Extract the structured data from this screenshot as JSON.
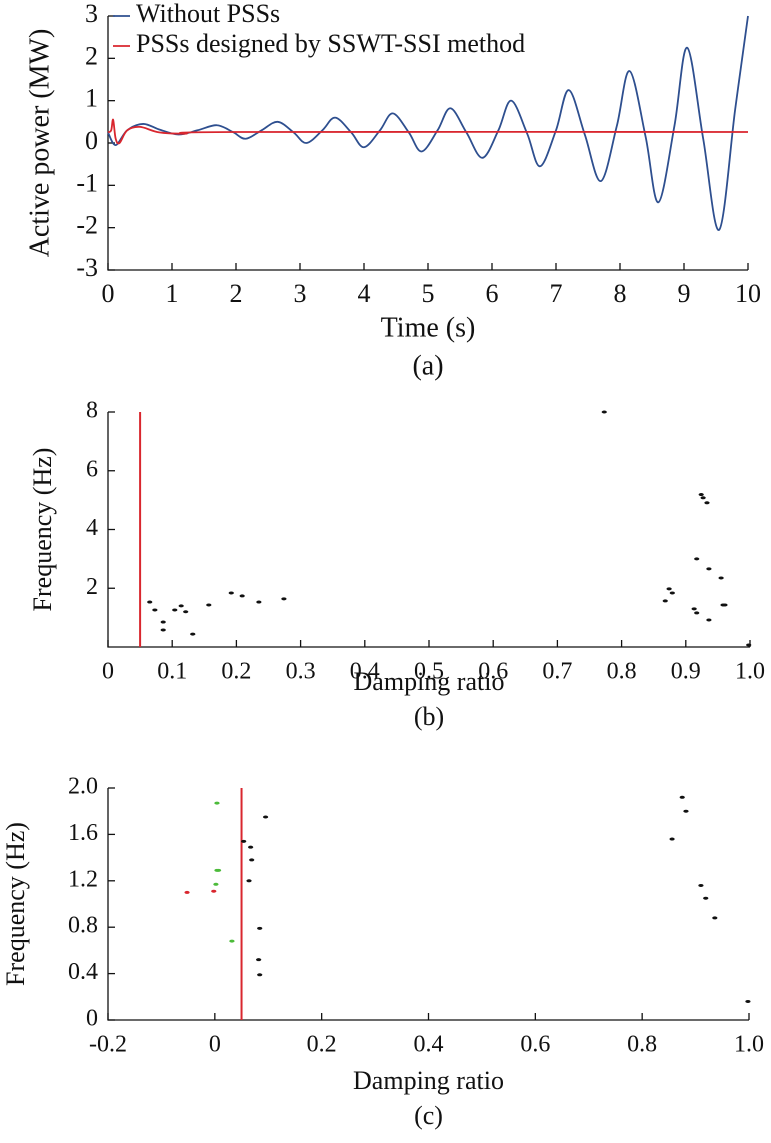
{
  "chart_data": [
    {
      "type": "line",
      "caption": "(a)",
      "x_label": "Time (s)",
      "y_label": "Active power (MW)",
      "xlim": [
        0,
        10
      ],
      "ylim": [
        -3,
        3
      ],
      "xticks": [
        0,
        1,
        2,
        3,
        4,
        5,
        6,
        7,
        8,
        9,
        10
      ],
      "yticks": [
        -3,
        -2,
        -1,
        0,
        1,
        2,
        3
      ],
      "legend": "upper left",
      "series": [
        {
          "name": "Without PSSs",
          "color": "#2e4f8f",
          "x": [
            0,
            0.12,
            0.3,
            0.55,
            0.8,
            1.1,
            1.4,
            1.7,
            1.95,
            2.15,
            2.4,
            2.65,
            2.9,
            3.1,
            3.35,
            3.55,
            3.8,
            4.0,
            4.25,
            4.45,
            4.7,
            4.9,
            5.15,
            5.35,
            5.6,
            5.85,
            6.1,
            6.3,
            6.55,
            6.75,
            7.0,
            7.2,
            7.45,
            7.7,
            7.95,
            8.15,
            8.4,
            8.6,
            8.85,
            9.05,
            9.3,
            9.55,
            9.8,
            10.0
          ],
          "values": [
            0.25,
            -0.05,
            0.3,
            0.45,
            0.32,
            0.2,
            0.3,
            0.42,
            0.26,
            0.1,
            0.3,
            0.5,
            0.25,
            0.0,
            0.3,
            0.6,
            0.25,
            -0.1,
            0.3,
            0.7,
            0.25,
            -0.2,
            0.3,
            0.82,
            0.25,
            -0.35,
            0.3,
            1.0,
            0.22,
            -0.55,
            0.3,
            1.25,
            0.2,
            -0.9,
            0.4,
            1.7,
            0.15,
            -1.4,
            0.4,
            2.25,
            0.1,
            -2.05,
            0.8,
            3.0
          ]
        },
        {
          "name": "PSSs designed by SSWT-SSI method",
          "color": "#d9262e",
          "x": [
            0,
            0.05,
            0.08,
            0.12,
            0.18,
            0.3,
            0.5,
            0.8,
            1.2,
            2.0,
            10.0
          ],
          "values": [
            0.25,
            0.3,
            0.55,
            0.1,
            0.0,
            0.3,
            0.38,
            0.25,
            0.22,
            0.26,
            0.26
          ]
        }
      ]
    },
    {
      "type": "scatter",
      "caption": "(b)",
      "x_label": "Damping ratio",
      "y_label": "Frequency (Hz)",
      "xlim": [
        0,
        1
      ],
      "ylim": [
        0,
        8
      ],
      "xticks": [
        0,
        0.1,
        0.2,
        0.3,
        0.4,
        0.5,
        0.6,
        0.7,
        0.8,
        0.9,
        {
          "value": 1,
          "label": "1.0"
        }
      ],
      "yticks": [
        2,
        4,
        6,
        8
      ],
      "threshold_line": {
        "x": 0.05,
        "color": "#d9262e"
      },
      "series": [
        {
          "color": "#111111",
          "x": [
            0.065,
            0.073,
            0.086,
            0.086,
            0.104,
            0.114,
            0.121,
            0.132,
            0.157,
            0.192,
            0.209,
            0.235,
            0.274,
            0.773,
            0.868,
            0.874,
            0.879,
            0.913,
            0.917,
            0.917,
            0.924,
            0.927,
            0.933,
            0.936,
            0.936,
            0.955,
            0.958,
            0.961,
            0.998
          ],
          "values": [
            1.53,
            1.26,
            0.85,
            0.58,
            1.26,
            1.4,
            1.2,
            0.44,
            1.43,
            1.84,
            1.74,
            1.53,
            1.64,
            8.0,
            1.57,
            1.98,
            1.84,
            1.3,
            1.16,
            3.0,
            5.19,
            5.08,
            4.91,
            2.66,
            0.92,
            2.35,
            1.43,
            1.43,
            0.07
          ]
        }
      ]
    },
    {
      "type": "scatter",
      "caption": "(c)",
      "x_label": "Damping ratio",
      "y_label": "Frequency (Hz)",
      "xlim": [
        -0.2,
        1
      ],
      "ylim": [
        0,
        2
      ],
      "xticks": [
        -0.2,
        0,
        0.2,
        0.4,
        0.6,
        0.8,
        {
          "value": 1,
          "label": "1.0"
        }
      ],
      "yticks": [
        0,
        0.4,
        0.8,
        1.2,
        1.6,
        {
          "value": 2,
          "label": "2.0"
        }
      ],
      "threshold_line": {
        "x": 0.05,
        "color": "#d9262e"
      },
      "series": [
        {
          "color": "#111111",
          "x": [
            0.054,
            0.067,
            0.069,
            0.064,
            0.095,
            0.084,
            0.082,
            0.084,
            0.856,
            0.875,
            0.882,
            0.91,
            0.919,
            0.936,
            0.998
          ],
          "values": [
            1.54,
            1.49,
            1.38,
            1.2,
            1.75,
            0.79,
            0.52,
            0.39,
            1.56,
            1.92,
            1.8,
            1.16,
            1.05,
            0.88,
            0.16
          ]
        },
        {
          "color": "#4cbb3a",
          "x": [
            0.004,
            0.004,
            0.007,
            0.002,
            0.032
          ],
          "values": [
            1.87,
            1.29,
            1.29,
            1.17,
            0.68
          ]
        },
        {
          "color": "#d9262e",
          "x": [
            -0.052,
            -0.002
          ],
          "values": [
            1.1,
            1.11
          ]
        }
      ]
    }
  ]
}
